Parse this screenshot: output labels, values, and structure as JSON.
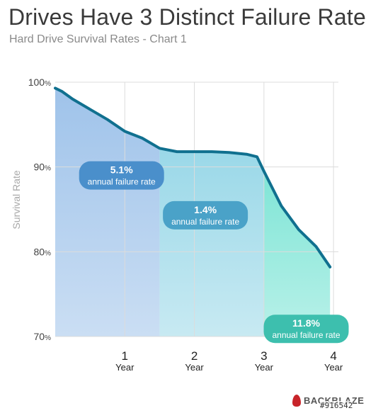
{
  "title": "Drives Have 3 Distinct Failure Rates",
  "subtitle": "Hard Drive Survival Rates - Chart 1",
  "brand": "BACKBLAZE",
  "watermark": "#916542",
  "colors": {
    "line": "#10708f",
    "phase1": "#9fc3ea",
    "phase2": "#9ad8e8",
    "phase3": "#7fe5d6",
    "grid": "#dcdcdc",
    "pill1": "#4a8fcb",
    "pill2": "#4aa2c8",
    "pill3": "#3dbfae"
  },
  "chart_data": {
    "type": "area",
    "title": "Drives Have 3 Distinct Failure Rates",
    "subtitle": "Hard Drive Survival Rates - Chart 1",
    "xlabel": "",
    "ylabel": "Survival Rate",
    "xlim": [
      0,
      4.07
    ],
    "ylim": [
      70,
      100
    ],
    "y_ticks": [
      {
        "value": 100,
        "num": "100",
        "unit": "%"
      },
      {
        "value": 90,
        "num": "90",
        "unit": "%"
      },
      {
        "value": 80,
        "num": "80",
        "unit": "%"
      },
      {
        "value": 70,
        "num": "70",
        "unit": "%"
      }
    ],
    "x_ticks": [
      {
        "value": 1,
        "num": "1",
        "unit": "Year"
      },
      {
        "value": 2,
        "num": "2",
        "unit": "Year"
      },
      {
        "value": 3,
        "num": "3",
        "unit": "Year"
      },
      {
        "value": 4,
        "num": "4",
        "unit": "Year"
      }
    ],
    "grid": true,
    "series": [
      {
        "values_x": [
          0,
          0.1,
          0.25,
          0.5,
          0.75,
          1.0,
          1.25,
          1.5,
          1.75,
          2.0,
          2.25,
          2.5,
          2.75,
          2.9,
          3.0,
          3.25,
          3.5,
          3.75,
          3.95
        ],
        "values_y": [
          99.3,
          98.9,
          98.0,
          96.8,
          95.6,
          94.2,
          93.4,
          92.2,
          91.8,
          91.8,
          91.8,
          91.7,
          91.5,
          91.2,
          89.5,
          85.4,
          82.6,
          80.6,
          78.2
        ]
      }
    ],
    "phases": [
      {
        "x_start": 0,
        "x_end": 1.5,
        "rate": "5.1%",
        "caption": "annual failure rate"
      },
      {
        "x_start": 1.5,
        "x_end": 3.0,
        "rate": "1.4%",
        "caption": "annual failure rate"
      },
      {
        "x_start": 3.0,
        "x_end": 3.95,
        "rate": "11.8%",
        "caption": "annual failure rate"
      }
    ]
  }
}
